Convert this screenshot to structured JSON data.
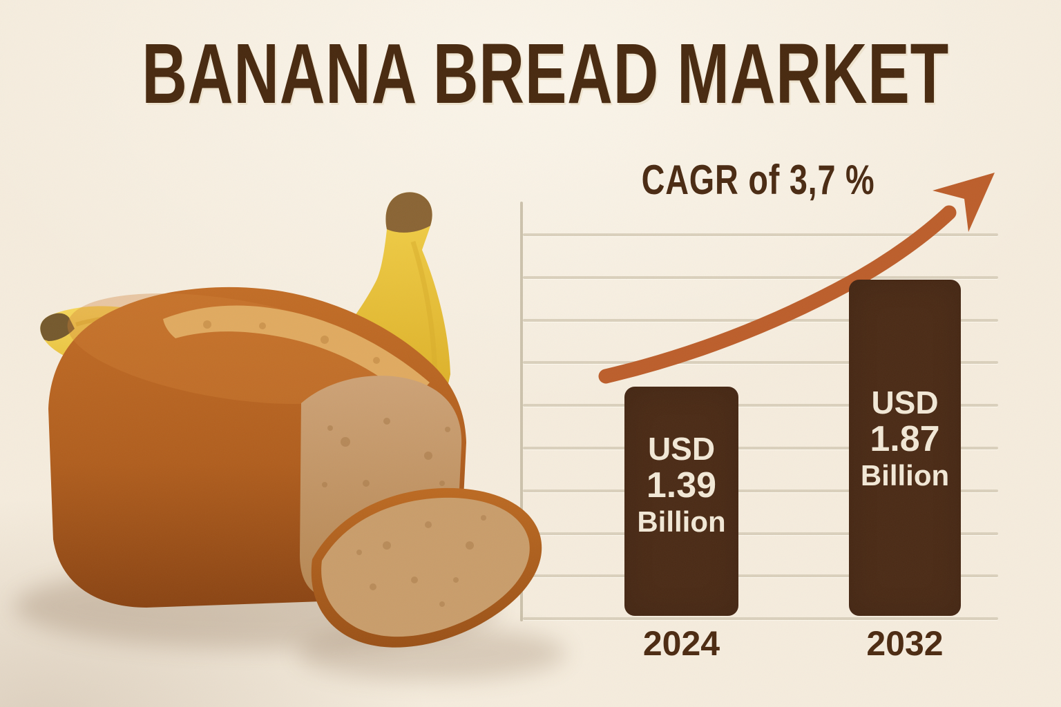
{
  "title": "BANANA BREAD MARKET",
  "colors": {
    "background": "#f5ecdd",
    "title_brown": "#48290f",
    "bar_brown": "#4b2b16",
    "bar_text_cream": "#f2e8d6",
    "arrow_orange": "#bc5e2b",
    "gridline": "#dad0bc",
    "axis": "#ccc2ac"
  },
  "chart_data": {
    "type": "bar",
    "title": "CAGR of 3,7 %",
    "cagr_label": "CAGR of 3,7 %",
    "cagr_percent": "3,7 %",
    "categories": [
      "2024",
      "2032"
    ],
    "values": [
      1.39,
      1.87
    ],
    "unit": "USD Billion",
    "bars": [
      {
        "year": "2024",
        "currency": "USD",
        "value": "1.39",
        "unit": "Billion"
      },
      {
        "year": "2032",
        "currency": "USD",
        "value": "1.87",
        "unit": "Billion"
      }
    ],
    "ylabel": "",
    "xlabel": "",
    "grid": true,
    "gridline_count": 10,
    "legend": false,
    "annotations": [
      "growth arrow pointing up-right"
    ]
  },
  "illustration": {
    "description": "banana bread loaf with a cut slice and two bananas"
  }
}
